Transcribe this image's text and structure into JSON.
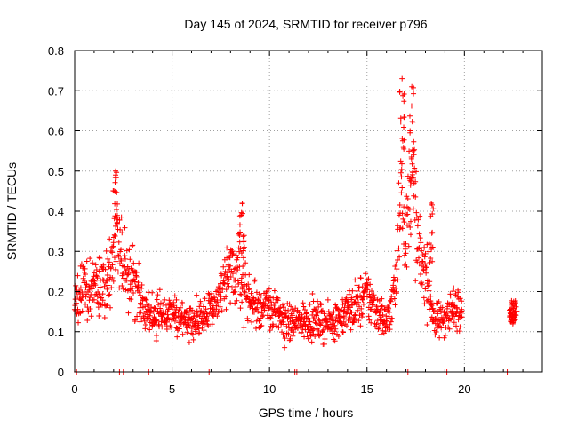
{
  "chart_data": {
    "type": "scatter",
    "title": "Day 145 of 2024, SRMTID for receiver p796",
    "xlabel": "GPS time / hours",
    "ylabel": "SRMTID / TECUs",
    "xlim": [
      0,
      24
    ],
    "ylim": [
      0,
      0.8
    ],
    "xticks": [
      0,
      5,
      10,
      15,
      20
    ],
    "xtick_labels": [
      "0",
      "5",
      "10",
      "15",
      "20"
    ],
    "yticks": [
      0,
      0.1,
      0.2,
      0.3,
      0.4,
      0.5,
      0.6,
      0.7,
      0.8
    ],
    "ytick_labels": [
      "0",
      "0.1",
      "0.2",
      "0.3",
      "0.4",
      "0.5",
      "0.6",
      "0.7",
      "0.8"
    ],
    "grid": true,
    "marker": "+",
    "color": "#ff0000",
    "series": [
      {
        "name": "SRMTID",
        "description": "dense scatter of + markers, ~0.1-0.3 TECU baseline with peaks near 2.1h (0.5) and 16.8-17.3h (0.73)",
        "profile": [
          {
            "x": 0.0,
            "y": 0.17
          },
          {
            "x": 0.5,
            "y": 0.21
          },
          {
            "x": 1.0,
            "y": 0.22
          },
          {
            "x": 1.5,
            "y": 0.2
          },
          {
            "x": 2.0,
            "y": 0.28
          },
          {
            "x": 2.15,
            "y": 0.38
          },
          {
            "x": 2.5,
            "y": 0.28
          },
          {
            "x": 3.0,
            "y": 0.24
          },
          {
            "x": 3.5,
            "y": 0.16
          },
          {
            "x": 4.0,
            "y": 0.14
          },
          {
            "x": 5.0,
            "y": 0.14
          },
          {
            "x": 6.0,
            "y": 0.13
          },
          {
            "x": 7.0,
            "y": 0.15
          },
          {
            "x": 8.0,
            "y": 0.24
          },
          {
            "x": 8.5,
            "y": 0.26
          },
          {
            "x": 9.0,
            "y": 0.17
          },
          {
            "x": 10.0,
            "y": 0.16
          },
          {
            "x": 11.0,
            "y": 0.12
          },
          {
            "x": 12.0,
            "y": 0.13
          },
          {
            "x": 13.0,
            "y": 0.12
          },
          {
            "x": 14.0,
            "y": 0.15
          },
          {
            "x": 15.0,
            "y": 0.19
          },
          {
            "x": 16.0,
            "y": 0.12
          },
          {
            "x": 16.5,
            "y": 0.22
          },
          {
            "x": 16.8,
            "y": 0.55
          },
          {
            "x": 17.0,
            "y": 0.3
          },
          {
            "x": 17.3,
            "y": 0.55
          },
          {
            "x": 17.6,
            "y": 0.3
          },
          {
            "x": 18.0,
            "y": 0.25
          },
          {
            "x": 18.5,
            "y": 0.12
          },
          {
            "x": 19.0,
            "y": 0.14
          },
          {
            "x": 19.5,
            "y": 0.16
          },
          {
            "x": 19.9,
            "y": 0.18
          }
        ],
        "segment2": {
          "x_range": [
            22.3,
            22.7
          ],
          "y_center": 0.15
        },
        "peaks": [
          {
            "x": 2.1,
            "y": 0.5
          },
          {
            "x": 8.6,
            "y": 0.42
          },
          {
            "x": 16.8,
            "y": 0.73
          },
          {
            "x": 17.3,
            "y": 0.71
          },
          {
            "x": 18.3,
            "y": 0.42
          }
        ],
        "zero_points_x": [
          0.1,
          2.3,
          2.5,
          3.8,
          6.9,
          11.3,
          11.4,
          17.1,
          19.1,
          22.2
        ]
      }
    ]
  }
}
